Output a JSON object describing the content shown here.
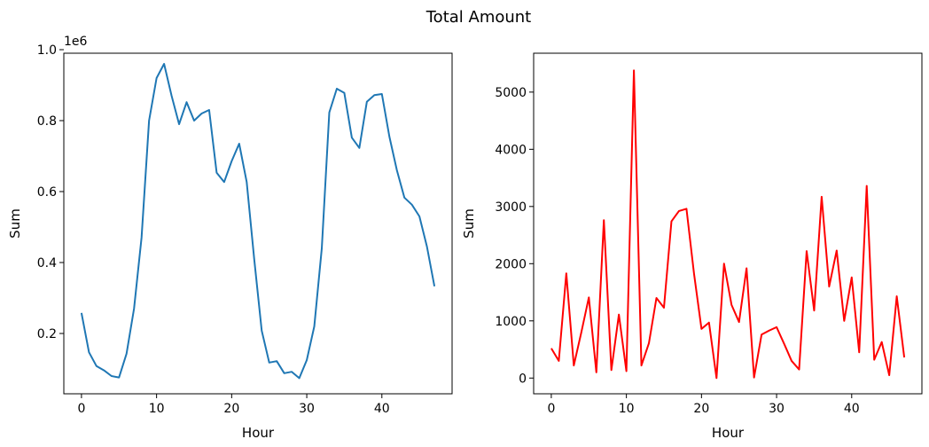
{
  "figure": {
    "title": "Total Amount"
  },
  "chart_data": [
    {
      "type": "line",
      "xlabel": "Hour",
      "ylabel": "Sum",
      "y_offset_label": "1e6",
      "xlim": [
        -2.35,
        49.35
      ],
      "ylim": [
        0.03,
        0.99
      ],
      "xticks": [
        0,
        10,
        20,
        30,
        40
      ],
      "yticks": [
        0.2,
        0.4,
        0.6,
        0.8,
        1.0
      ],
      "ytick_labels": [
        "0.2",
        "0.4",
        "0.6",
        "0.8",
        "1.0"
      ],
      "grid": false,
      "series": [
        {
          "color": "#1f77b4",
          "x": [
            0,
            1,
            2,
            3,
            4,
            5,
            6,
            7,
            8,
            9,
            10,
            11,
            12,
            13,
            14,
            15,
            16,
            17,
            18,
            19,
            20,
            21,
            22,
            23,
            24,
            25,
            26,
            27,
            28,
            29,
            30,
            31,
            32,
            33,
            34,
            35,
            36,
            37,
            38,
            39,
            40,
            41,
            42,
            43,
            44,
            45,
            46,
            47
          ],
          "values": [
            0.258,
            0.147,
            0.108,
            0.096,
            0.08,
            0.076,
            0.143,
            0.27,
            0.47,
            0.8,
            0.92,
            0.96,
            0.87,
            0.79,
            0.852,
            0.8,
            0.82,
            0.83,
            0.653,
            0.627,
            0.686,
            0.735,
            0.627,
            0.41,
            0.208,
            0.118,
            0.122,
            0.088,
            0.092,
            0.074,
            0.125,
            0.22,
            0.44,
            0.823,
            0.89,
            0.878,
            0.752,
            0.723,
            0.853,
            0.872,
            0.875,
            0.755,
            0.66,
            0.583,
            0.563,
            0.53,
            0.445,
            0.333
          ]
        }
      ]
    },
    {
      "type": "line",
      "xlabel": "Hour",
      "ylabel": "Sum",
      "xlim": [
        -2.35,
        49.35
      ],
      "ylim": [
        -275,
        5680
      ],
      "xticks": [
        0,
        10,
        20,
        30,
        40
      ],
      "yticks": [
        0,
        1000,
        2000,
        3000,
        4000,
        5000
      ],
      "ytick_labels": [
        "0",
        "1000",
        "2000",
        "3000",
        "4000",
        "5000"
      ],
      "grid": false,
      "series": [
        {
          "color": "#ff0000",
          "x": [
            0,
            1,
            2,
            3,
            4,
            5,
            6,
            7,
            8,
            9,
            10,
            11,
            12,
            13,
            14,
            15,
            16,
            17,
            18,
            19,
            20,
            21,
            22,
            23,
            24,
            25,
            26,
            27,
            28,
            29,
            30,
            31,
            32,
            33,
            34,
            35,
            36,
            37,
            38,
            39,
            40,
            41,
            42,
            43,
            44,
            45,
            46,
            47
          ],
          "values": [
            520,
            300,
            1830,
            220,
            800,
            1410,
            100,
            2760,
            140,
            1110,
            120,
            5380,
            220,
            610,
            1400,
            1230,
            2740,
            2920,
            2960,
            1830,
            860,
            970,
            0,
            2000,
            1280,
            980,
            1920,
            10,
            760,
            830,
            890,
            600,
            300,
            150,
            2220,
            1180,
            3170,
            1600,
            2230,
            1000,
            1760,
            450,
            3360,
            320,
            630,
            50,
            1430,
            360
          ]
        }
      ]
    }
  ]
}
